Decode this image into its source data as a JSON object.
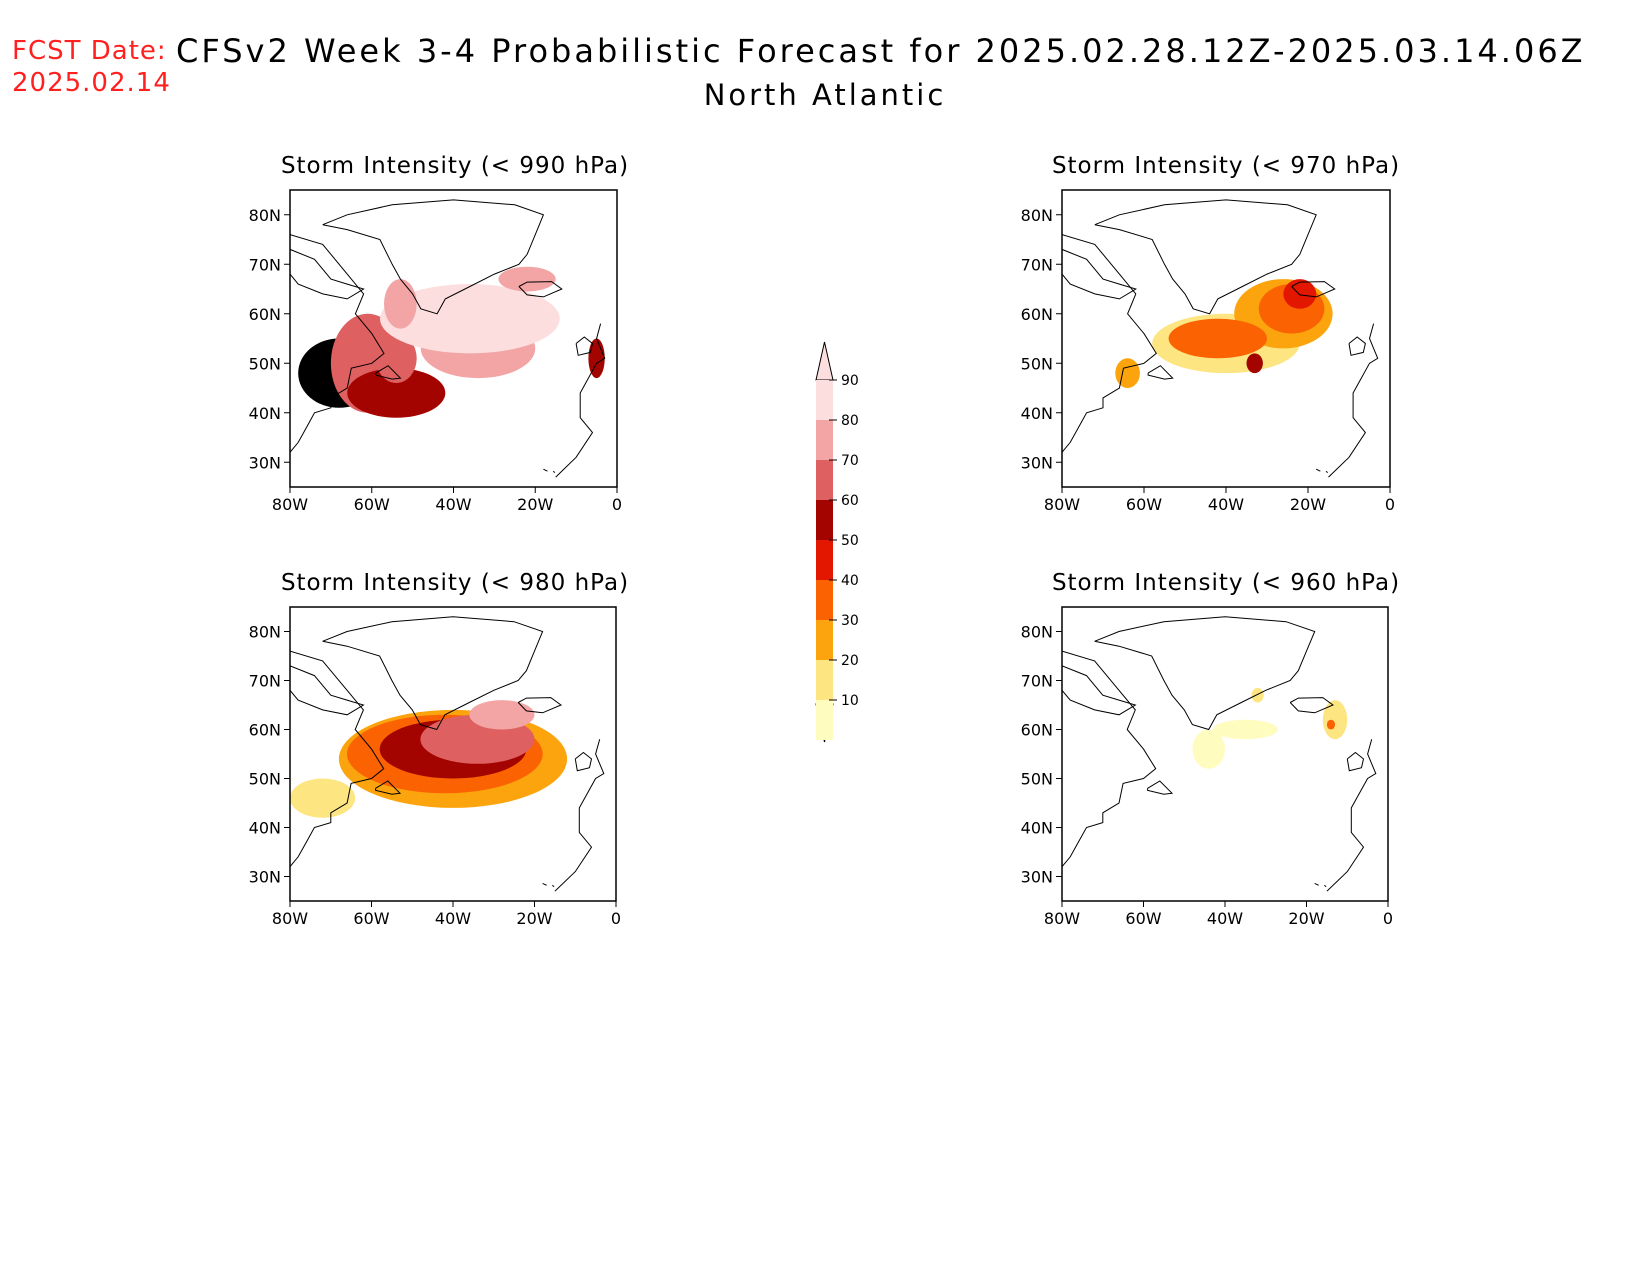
{
  "header": {
    "fcst_label": "FCST Date:",
    "fcst_date": "2025.02.14",
    "title": "CFSv2 Week 3-4 Probabilistic Forecast for 2025.02.28.12Z-2025.03.14.06Z",
    "region": "North Atlantic"
  },
  "axes": {
    "lat_labels": [
      "80N",
      "70N",
      "60N",
      "50N",
      "40N",
      "30N"
    ],
    "lon_labels": [
      "80W",
      "60W",
      "40W",
      "20W",
      "0"
    ]
  },
  "colorbar": {
    "levels": [
      "10",
      "20",
      "30",
      "40",
      "50",
      "60",
      "70",
      "80",
      "90"
    ],
    "colors": [
      "#fffcc0",
      "#fde581",
      "#fba40e",
      "#fb6202",
      "#e31700",
      "#a30400",
      "#de6060",
      "#f3a4a4",
      "#fcdede"
    ]
  },
  "chart_data": {
    "type": "heatmap",
    "units": "probability (%)",
    "lon_range": [
      -80,
      0
    ],
    "lat_range": [
      25,
      85
    ],
    "panels": [
      {
        "id": "p990",
        "title": "Storm Intensity (< 990 hPa)",
        "blobs": [
          {
            "lon": -68,
            "lat": 48,
            "rx": 10,
            "ry": 7,
            "level": 10
          },
          {
            "lon": -61,
            "lat": 50,
            "rx": 9,
            "ry": 10,
            "level": 7
          },
          {
            "lon": -54,
            "lat": 44,
            "rx": 12,
            "ry": 5,
            "level": 6
          },
          {
            "lon": -54,
            "lat": 51,
            "rx": 5,
            "ry": 5,
            "level": 7
          },
          {
            "lon": -34,
            "lat": 53,
            "rx": 14,
            "ry": 6,
            "level": 8
          },
          {
            "lon": -36,
            "lat": 59,
            "rx": 22,
            "ry": 7,
            "level": 9
          },
          {
            "lon": -53,
            "lat": 62,
            "rx": 4,
            "ry": 5,
            "level": 8
          },
          {
            "lon": -22,
            "lat": 67,
            "rx": 7,
            "ry": 2.5,
            "level": 8
          },
          {
            "lon": -5,
            "lat": 51,
            "rx": 2,
            "ry": 4,
            "level": 6
          }
        ]
      },
      {
        "id": "p970",
        "title": "Storm Intensity (< 970 hPa)",
        "blobs": [
          {
            "lon": -64,
            "lat": 48,
            "rx": 3,
            "ry": 3,
            "level": 3
          },
          {
            "lon": -40,
            "lat": 54,
            "rx": 18,
            "ry": 6,
            "level": 2
          },
          {
            "lon": -26,
            "lat": 60,
            "rx": 12,
            "ry": 7,
            "level": 3
          },
          {
            "lon": -42,
            "lat": 55,
            "rx": 12,
            "ry": 4,
            "level": 4
          },
          {
            "lon": -24,
            "lat": 61,
            "rx": 8,
            "ry": 5,
            "level": 4
          },
          {
            "lon": -22,
            "lat": 64,
            "rx": 4,
            "ry": 3,
            "level": 5
          },
          {
            "lon": -33,
            "lat": 50,
            "rx": 2,
            "ry": 2,
            "level": 6
          }
        ]
      },
      {
        "id": "p980",
        "title": "Storm Intensity (< 980 hPa)",
        "blobs": [
          {
            "lon": -72,
            "lat": 46,
            "rx": 8,
            "ry": 4,
            "level": 2
          },
          {
            "lon": -40,
            "lat": 54,
            "rx": 28,
            "ry": 10,
            "level": 3
          },
          {
            "lon": -42,
            "lat": 55,
            "rx": 24,
            "ry": 8,
            "level": 4
          },
          {
            "lon": -40,
            "lat": 56,
            "rx": 18,
            "ry": 6,
            "level": 6
          },
          {
            "lon": -34,
            "lat": 58,
            "rx": 14,
            "ry": 5,
            "level": 7
          },
          {
            "lon": -28,
            "lat": 63,
            "rx": 8,
            "ry": 3,
            "level": 8
          }
        ]
      },
      {
        "id": "p960",
        "title": "Storm Intensity (< 960 hPa)",
        "blobs": [
          {
            "lon": -44,
            "lat": 56,
            "rx": 4,
            "ry": 4,
            "level": 1
          },
          {
            "lon": -35,
            "lat": 60,
            "rx": 8,
            "ry": 2,
            "level": 1
          },
          {
            "lon": -32,
            "lat": 67,
            "rx": 1.5,
            "ry": 1.5,
            "level": 2
          },
          {
            "lon": -13,
            "lat": 62,
            "rx": 3,
            "ry": 4,
            "level": 2
          },
          {
            "lon": -14,
            "lat": 61,
            "rx": 1,
            "ry": 1,
            "level": 4
          }
        ]
      }
    ]
  }
}
